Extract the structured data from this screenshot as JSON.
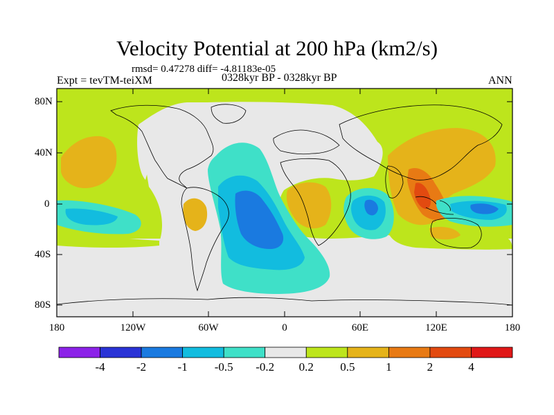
{
  "title": "Velocity Potential at 200 hPa (km2/s)",
  "stats": "rmsd= 0.47278 diff= -4.81183e-05",
  "left_label": "Expt = tevTM-teiXM",
  "center_label": "0328kyr BP - 0328kyr BP",
  "right_label": "ANN",
  "lat_ticks": [
    "80N",
    "40N",
    "0",
    "40S",
    "80S"
  ],
  "lon_ticks": [
    "180",
    "120W",
    "60W",
    "0",
    "60E",
    "120E",
    "180"
  ],
  "colorbar": {
    "labels": [
      "-4",
      "-2",
      "-1",
      "-0.5",
      "-0.2",
      "0.2",
      "0.5",
      "1",
      "2",
      "4"
    ],
    "colors": [
      "#8c22e8",
      "#2a33d6",
      "#1a7ae0",
      "#12bcdf",
      "#3fe0c8",
      "#e8e8e8",
      "#bde51c",
      "#e5b31a",
      "#e87a14",
      "#e24a10",
      "#e01818"
    ]
  },
  "colors": {
    "positive_weak": "#bde51c",
    "positive_mid": "#e5b31a",
    "positive_strong": "#e87a14",
    "positive_max": "#e24a10",
    "neutral": "#e8e8e8",
    "negative_weak": "#3fe0c8",
    "negative_mid": "#12bcdf",
    "negative_strong": "#1a7ae0"
  }
}
